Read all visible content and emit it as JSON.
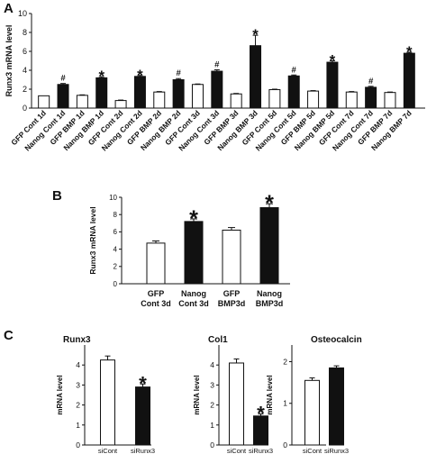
{
  "figure": {
    "bar_stroke": "#111111",
    "filled_color": "#111111",
    "open_color": "#ffffff",
    "panels": [
      {
        "letter": "A"
      },
      {
        "letter": "B"
      },
      {
        "letter": "C",
        "titles": [
          "Runx3",
          "Col1",
          "Osteocalcin"
        ]
      }
    ]
  },
  "chart_data": [
    {
      "panel": "A",
      "type": "bar",
      "ylabel": "Runx3 mRNA level",
      "ylim": [
        0,
        10
      ],
      "yticks": [
        0,
        2,
        4,
        6,
        8,
        10
      ],
      "grid": false,
      "categories": [
        "GFP Cont 1d",
        "Nanog Cont 1d",
        "GFP BMP 1d",
        "Nanog BMP 1d",
        "GFP Cont 2d",
        "Nanog Cont 2d",
        "GFP BMP 2d",
        "Nanog BMP 2d",
        "GFP Cont 3d",
        "Nanog Cont 3d",
        "GFP BMP 3d",
        "Nanog BMP 3d",
        "GFP Cont 5d",
        "Nanog Cont 5d",
        "GFP BMP 5d",
        "Nanog BMP 5d",
        "GFP Cont 7d",
        "Nanog Cont 7d",
        "GFP BMP 7d",
        "Nanog BMP 7d"
      ],
      "values": [
        1.3,
        2.5,
        1.35,
        3.2,
        0.8,
        3.35,
        1.7,
        3.0,
        2.5,
        3.9,
        1.5,
        6.6,
        1.95,
        3.4,
        1.8,
        4.85,
        1.7,
        2.2,
        1.65,
        5.8
      ],
      "errors": [
        0,
        0.1,
        0.05,
        0.12,
        0.05,
        0.1,
        0.05,
        0.12,
        0.05,
        0.15,
        0.05,
        1.1,
        0.05,
        0.1,
        0.05,
        0.15,
        0.05,
        0.1,
        0.05,
        0.1
      ],
      "fill": [
        "open",
        "filled",
        "open",
        "filled",
        "open",
        "filled",
        "open",
        "filled",
        "open",
        "filled",
        "open",
        "filled",
        "open",
        "filled",
        "open",
        "filled",
        "open",
        "filled",
        "open",
        "filled"
      ],
      "markers": [
        "",
        "#",
        "",
        "*",
        "",
        "*",
        "",
        "#",
        "",
        "#",
        "",
        "*",
        "",
        "#",
        "",
        "*",
        "",
        "#",
        "",
        "*"
      ]
    },
    {
      "panel": "B",
      "type": "bar",
      "ylabel": "Runx3 mRNA level",
      "ylim": [
        0,
        10
      ],
      "yticks": [
        0,
        2,
        4,
        6,
        8,
        10
      ],
      "grid": false,
      "categories": [
        [
          "GFP",
          "Cont 3d"
        ],
        [
          "Nanog",
          "Cont 3d"
        ],
        [
          "GFP",
          "BMP3d"
        ],
        [
          "Nanog",
          "BMP3d"
        ]
      ],
      "values": [
        4.7,
        7.2,
        6.2,
        8.8
      ],
      "errors": [
        0.25,
        0.3,
        0.3,
        0.45
      ],
      "fill": [
        "open",
        "filled",
        "open",
        "filled"
      ],
      "markers": [
        "",
        "*",
        "",
        "*"
      ]
    },
    {
      "panel": "C",
      "title": "Runx3",
      "type": "bar",
      "ylabel": "mRNA level",
      "ylim": [
        0,
        5
      ],
      "yticks": [
        0,
        1,
        2,
        3,
        4
      ],
      "grid": false,
      "categories": [
        "siCont",
        "siRunx3"
      ],
      "values": [
        4.25,
        2.9
      ],
      "errors": [
        0.2,
        0.15
      ],
      "fill": [
        "open",
        "filled"
      ],
      "markers": [
        "",
        "*"
      ]
    },
    {
      "panel": "C",
      "title": "Col1",
      "type": "bar",
      "ylabel": "mRNA level",
      "ylim": [
        0,
        5
      ],
      "yticks": [
        0,
        1,
        2,
        3,
        4
      ],
      "grid": false,
      "categories": [
        "siCont",
        "siRunx3"
      ],
      "values": [
        4.1,
        1.45
      ],
      "errors": [
        0.2,
        0.1
      ],
      "fill": [
        "open",
        "filled"
      ],
      "markers": [
        "",
        "*"
      ]
    },
    {
      "panel": "C",
      "title": "Osteocalcin",
      "type": "bar",
      "ylabel": "mRNA level",
      "ylim": [
        0,
        2.4
      ],
      "yticks": [
        0,
        1,
        2
      ],
      "grid": false,
      "categories": [
        "siCont",
        "siRunx3"
      ],
      "values": [
        1.55,
        1.85
      ],
      "errors": [
        0.06,
        0.05
      ],
      "fill": [
        "open",
        "filled"
      ],
      "markers": [
        "",
        ""
      ]
    }
  ]
}
